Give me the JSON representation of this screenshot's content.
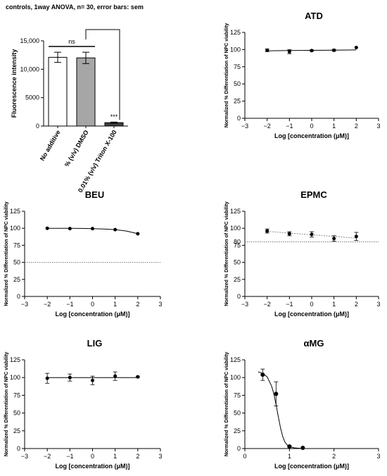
{
  "header": "controls, 1way ANOVA, n= 30, error bars: sem",
  "chart_data": [
    {
      "type": "bar",
      "title": "",
      "ylabel": "Fluorescence intensity",
      "xlabel": "",
      "categories": [
        "No additive",
        "% (v/v) DMSO",
        "0.01% (v/v) Triton X-100"
      ],
      "values": [
        12100,
        12000,
        600
      ],
      "errors": [
        900,
        1000,
        100
      ],
      "bar_colors": [
        "#ffffff",
        "#a6a6a6",
        "#404040"
      ],
      "ylim": [
        0,
        15000
      ],
      "yticks": [
        0,
        5000,
        10000,
        15000
      ],
      "ytick_labels": [
        "0",
        "5000",
        "10,000",
        "15,000"
      ],
      "annotations": [
        {
          "text": "ns",
          "between": [
            0,
            1
          ]
        },
        {
          "text": "***",
          "category": 2
        }
      ]
    },
    {
      "type": "scatter",
      "title": "ATD",
      "xlabel": "Log [concentration (μM)]",
      "ylabel": "Normalized % Differentiation of NPC viability",
      "xlim": [
        -3,
        3
      ],
      "ylim": [
        0,
        125
      ],
      "xticks": [
        -3,
        -2,
        -1,
        0,
        1,
        2,
        3
      ],
      "yticks": [
        0,
        25,
        50,
        75,
        100,
        125
      ],
      "x": [
        -2,
        -1,
        0,
        1,
        2
      ],
      "y": [
        99,
        97,
        98.5,
        99,
        103
      ],
      "errors": [
        2,
        3,
        1,
        1.5,
        0
      ],
      "fit": {
        "x": [
          -2,
          -1,
          0,
          1,
          2
        ],
        "y": [
          98.3,
          98.6,
          98.9,
          99.2,
          99.5
        ]
      },
      "reference_line": null
    },
    {
      "type": "scatter",
      "title": "BEU",
      "xlabel": "Log [concentration (μM)]",
      "ylabel": "Normalized % Differentiation of NPC viability",
      "xlim": [
        -3,
        3
      ],
      "ylim": [
        0,
        125
      ],
      "xticks": [
        -3,
        -2,
        -1,
        0,
        1,
        2,
        3
      ],
      "yticks": [
        0,
        25,
        50,
        75,
        100,
        125
      ],
      "x": [
        -2,
        -1,
        0,
        1,
        2
      ],
      "y": [
        100,
        99.5,
        99.5,
        98,
        92
      ],
      "errors": [
        0,
        0,
        0,
        0,
        0
      ],
      "fit": {
        "x": [
          -2,
          -1.5,
          -1,
          -0.5,
          0,
          0.5,
          1,
          1.5,
          2
        ],
        "y": [
          100,
          100,
          99.9,
          99.8,
          99.5,
          99,
          98,
          96,
          92
        ]
      },
      "reference_line": 50
    },
    {
      "type": "scatter",
      "title": "EPMC",
      "xlabel": "Log [concentration (μM)]",
      "ylabel": "Normalized % Differentiation of NPC viability",
      "xlim": [
        -3,
        3
      ],
      "ylim": [
        0,
        125
      ],
      "xticks": [
        -3,
        -2,
        -1,
        0,
        1,
        2,
        3
      ],
      "yticks": [
        0,
        25,
        50,
        75,
        100,
        125
      ],
      "extra_ytick": "80",
      "x": [
        -2,
        -1,
        0,
        1,
        2
      ],
      "y": [
        96,
        92,
        91,
        85,
        88
      ],
      "errors": [
        3,
        3,
        4,
        4,
        6
      ],
      "fit": {
        "x": [
          -2,
          -1,
          0,
          1,
          2
        ],
        "y": [
          95.5,
          93,
          90.5,
          88,
          85.5
        ]
      },
      "reference_line": 80
    },
    {
      "type": "scatter",
      "title": "LIG",
      "xlabel": "Log [concentration (μM)]",
      "ylabel": "Normalized % Differentiation of NPC viability",
      "xlim": [
        -3,
        3
      ],
      "ylim": [
        0,
        125
      ],
      "xticks": [
        -3,
        -2,
        -1,
        0,
        1,
        2,
        3
      ],
      "yticks": [
        0,
        25,
        50,
        75,
        100,
        125
      ],
      "x": [
        -2,
        -1,
        0,
        1,
        2
      ],
      "y": [
        99,
        100,
        96,
        102,
        101
      ],
      "errors": [
        7,
        5,
        6,
        6,
        1
      ],
      "fit": {
        "x": [
          -2,
          -1,
          0,
          1,
          2
        ],
        "y": [
          100,
          100,
          100,
          100,
          100
        ]
      },
      "reference_line": null
    },
    {
      "type": "scatter",
      "title": "αMG",
      "xlabel": "Log [concentration (μM)]",
      "ylabel": "Normalized % Differentiation of NPC viability",
      "xlim": [
        0,
        3
      ],
      "ylim": [
        0,
        125
      ],
      "xticks": [
        0,
        1,
        2,
        3
      ],
      "yticks": [
        0,
        25,
        50,
        75,
        100,
        125
      ],
      "x": [
        0.4,
        0.7,
        1.0,
        1.3
      ],
      "y": [
        104,
        77,
        3,
        1
      ],
      "errors": [
        8,
        17,
        1,
        0
      ],
      "fit": {
        "x": [
          0.3,
          0.4,
          0.5,
          0.6,
          0.65,
          0.7,
          0.75,
          0.8,
          0.85,
          0.9,
          0.95,
          1.0,
          1.1,
          1.2,
          1.3
        ],
        "y": [
          108,
          106,
          101,
          88,
          77,
          62,
          45,
          29,
          17,
          9,
          5,
          3,
          1,
          0.5,
          0.3
        ]
      },
      "reference_line": null
    }
  ]
}
